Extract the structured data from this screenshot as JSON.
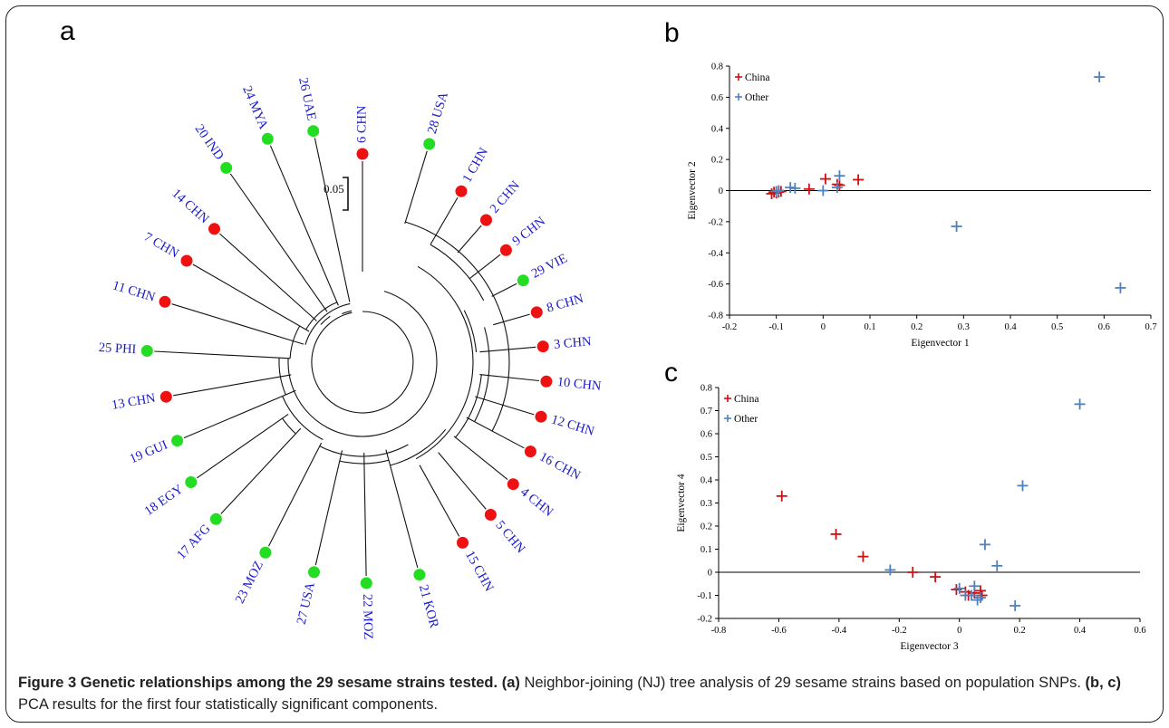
{
  "panels": {
    "a": "a",
    "b": "b",
    "c": "c"
  },
  "tree": {
    "scale_label": "0.05",
    "leaves": [
      {
        "label": "6 CHN",
        "origin": "china"
      },
      {
        "label": "28 USA",
        "origin": "other"
      },
      {
        "label": "1 CHN",
        "origin": "china"
      },
      {
        "label": "2 CHN",
        "origin": "china"
      },
      {
        "label": "9 CHN",
        "origin": "china"
      },
      {
        "label": "29 VIE",
        "origin": "other"
      },
      {
        "label": "8 CHN",
        "origin": "china"
      },
      {
        "label": "3 CHN",
        "origin": "china"
      },
      {
        "label": "10 CHN",
        "origin": "china"
      },
      {
        "label": "12 CHN",
        "origin": "china"
      },
      {
        "label": "16 CHN",
        "origin": "china"
      },
      {
        "label": "4 CHN",
        "origin": "china"
      },
      {
        "label": "5 CHN",
        "origin": "china"
      },
      {
        "label": "15 CHN",
        "origin": "china"
      },
      {
        "label": "21 KOR",
        "origin": "other"
      },
      {
        "label": "22 MOZ",
        "origin": "other"
      },
      {
        "label": "27 USA",
        "origin": "other"
      },
      {
        "label": "23 MOZ",
        "origin": "other"
      },
      {
        "label": "17 AFG",
        "origin": "other"
      },
      {
        "label": "18 EGY",
        "origin": "other"
      },
      {
        "label": "19 GUI",
        "origin": "other"
      },
      {
        "label": "13 CHN",
        "origin": "china"
      },
      {
        "label": "25 PHI",
        "origin": "other"
      },
      {
        "label": "11 CHN",
        "origin": "china"
      },
      {
        "label": "7 CHN",
        "origin": "china"
      },
      {
        "label": "14 CHN",
        "origin": "china"
      },
      {
        "label": "20 IND",
        "origin": "other"
      },
      {
        "label": "24 MYA",
        "origin": "other"
      },
      {
        "label": "26 UAE",
        "origin": "other"
      }
    ],
    "colors": {
      "china_dot": "#ee1111",
      "other_dot": "#22dd22",
      "label_text": "#1a1acc"
    }
  },
  "chart_data": [
    {
      "type": "scatter",
      "panel": "b",
      "xlabel": "Eigenvector 1",
      "ylabel": "Eigenvector 2",
      "xlim": [
        -0.2,
        0.7
      ],
      "ylim": [
        -0.8,
        0.8
      ],
      "xticks": [
        "-0.2",
        "-0.1",
        "0",
        "0.1",
        "0.2",
        "0.3",
        "0.4",
        "0.5",
        "0.6",
        "0.7"
      ],
      "yticks": [
        "0.8",
        "0.6",
        "0.4",
        "0.2",
        "0",
        "-0.2",
        "-0.4",
        "-0.6",
        "-0.8"
      ],
      "legend_position": "top-left",
      "grid": false,
      "series": [
        {
          "name": "China",
          "color": "#cc1111",
          "points": [
            [
              -0.11,
              -0.02
            ],
            [
              -0.105,
              -0.01
            ],
            [
              -0.1,
              -0.015
            ],
            [
              -0.095,
              -0.01
            ],
            [
              -0.09,
              -0.005
            ],
            [
              -0.03,
              0.01
            ],
            [
              0.005,
              0.075
            ],
            [
              0.03,
              0.04
            ],
            [
              0.035,
              0.035
            ],
            [
              0.075,
              0.07
            ]
          ]
        },
        {
          "name": "Other",
          "color": "#4f81bd",
          "points": [
            [
              -0.1,
              -0.005
            ],
            [
              -0.095,
              0.0
            ],
            [
              -0.07,
              0.02
            ],
            [
              -0.06,
              0.015
            ],
            [
              0.0,
              0.0
            ],
            [
              0.03,
              0.02
            ],
            [
              0.035,
              0.095
            ],
            [
              0.285,
              -0.23
            ],
            [
              0.59,
              0.73
            ],
            [
              0.635,
              -0.625
            ]
          ]
        }
      ]
    },
    {
      "type": "scatter",
      "panel": "c",
      "xlabel": "Eigenvector 3",
      "ylabel": "Eigenvector 4",
      "xlim": [
        -0.8,
        0.6
      ],
      "ylim": [
        -0.2,
        0.8
      ],
      "xticks": [
        "-0.8",
        "-0.6",
        "-0.4",
        "-0.2",
        "0",
        "0.2",
        "0.4",
        "0.6"
      ],
      "yticks": [
        "0.8",
        "0.7",
        "0.6",
        "0.5",
        "0.4",
        "0.3",
        "0.2",
        "0.1",
        "0",
        "-0.1",
        "-0.2"
      ],
      "legend_position": "top-left",
      "grid": false,
      "series": [
        {
          "name": "China",
          "color": "#cc1111",
          "points": [
            [
              -0.59,
              0.33
            ],
            [
              -0.41,
              0.165
            ],
            [
              -0.32,
              0.068
            ],
            [
              -0.155,
              0.0
            ],
            [
              -0.08,
              -0.02
            ],
            [
              -0.01,
              -0.075
            ],
            [
              0.02,
              -0.085
            ],
            [
              0.03,
              -0.1
            ],
            [
              0.05,
              -0.09
            ],
            [
              0.07,
              -0.08
            ],
            [
              0.075,
              -0.1
            ]
          ]
        },
        {
          "name": "Other",
          "color": "#4f81bd",
          "points": [
            [
              -0.23,
              0.01
            ],
            [
              0.0,
              -0.07
            ],
            [
              0.02,
              -0.1
            ],
            [
              0.04,
              -0.1
            ],
            [
              0.05,
              -0.06
            ],
            [
              0.06,
              -0.12
            ],
            [
              0.07,
              -0.11
            ],
            [
              0.085,
              0.12
            ],
            [
              0.125,
              0.028
            ],
            [
              0.185,
              -0.145
            ],
            [
              0.21,
              0.375
            ],
            [
              0.4,
              0.728
            ]
          ]
        }
      ]
    }
  ],
  "caption": {
    "lead": "Figure 3 Genetic relationships among the 29 sesame strains tested.",
    "a_ref": "(a)",
    "a_text": " Neighbor-joining (NJ) tree analysis of 29 sesame strains based on population SNPs. ",
    "bc_ref": "(b, c)",
    "bc_text": " PCA results for the first four statistically significant components."
  }
}
